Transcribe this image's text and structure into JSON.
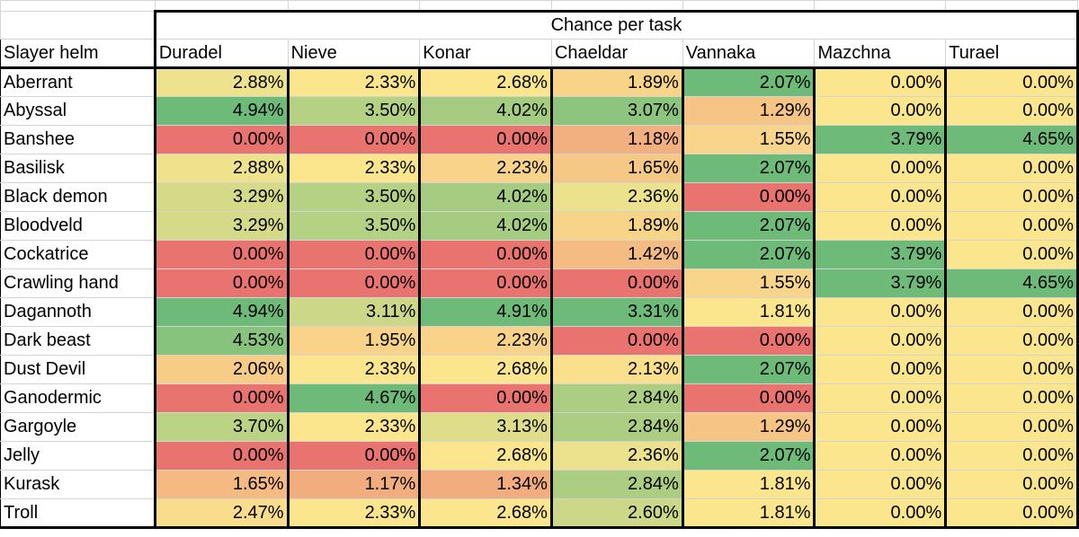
{
  "title": "Chance per task",
  "row_header": "Slayer helm",
  "chart_data": {
    "type": "table",
    "title": "Chance per task",
    "columns": [
      "Duradel",
      "Nieve",
      "Konar",
      "Chaeldar",
      "Vannaka",
      "Mazchna",
      "Turael"
    ],
    "rows": [
      {
        "name": "Aberrant",
        "values": [
          2.88,
          2.33,
          2.68,
          1.89,
          2.07,
          0.0,
          0.0
        ]
      },
      {
        "name": "Abyssal",
        "values": [
          4.94,
          3.5,
          4.02,
          3.07,
          1.29,
          0.0,
          0.0
        ]
      },
      {
        "name": "Banshee",
        "values": [
          0.0,
          0.0,
          0.0,
          1.18,
          1.55,
          3.79,
          4.65
        ]
      },
      {
        "name": "Basilisk",
        "values": [
          2.88,
          2.33,
          2.23,
          1.65,
          2.07,
          0.0,
          0.0
        ]
      },
      {
        "name": "Black demon",
        "values": [
          3.29,
          3.5,
          4.02,
          2.36,
          0.0,
          0.0,
          0.0
        ]
      },
      {
        "name": "Bloodveld",
        "values": [
          3.29,
          3.5,
          4.02,
          1.89,
          2.07,
          0.0,
          0.0
        ]
      },
      {
        "name": "Cockatrice",
        "values": [
          0.0,
          0.0,
          0.0,
          1.42,
          2.07,
          3.79,
          0.0
        ]
      },
      {
        "name": "Crawling hand",
        "values": [
          0.0,
          0.0,
          0.0,
          0.0,
          1.55,
          3.79,
          4.65
        ]
      },
      {
        "name": "Dagannoth",
        "values": [
          4.94,
          3.11,
          4.91,
          3.31,
          1.81,
          0.0,
          0.0
        ]
      },
      {
        "name": "Dark beast",
        "values": [
          4.53,
          1.95,
          2.23,
          0.0,
          0.0,
          0.0,
          0.0
        ]
      },
      {
        "name": "Dust Devil",
        "values": [
          2.06,
          2.33,
          2.68,
          2.13,
          2.07,
          0.0,
          0.0
        ]
      },
      {
        "name": "Ganodermic",
        "values": [
          0.0,
          4.67,
          0.0,
          2.84,
          0.0,
          0.0,
          0.0
        ]
      },
      {
        "name": "Gargoyle",
        "values": [
          3.7,
          2.33,
          3.13,
          2.84,
          1.29,
          0.0,
          0.0
        ]
      },
      {
        "name": "Jelly",
        "values": [
          0.0,
          0.0,
          2.68,
          2.36,
          2.07,
          0.0,
          0.0
        ]
      },
      {
        "name": "Kurask",
        "values": [
          1.65,
          1.17,
          1.34,
          2.84,
          1.81,
          0.0,
          0.0
        ]
      },
      {
        "name": "Troll",
        "values": [
          2.47,
          2.33,
          2.68,
          2.6,
          1.81,
          0.0,
          0.0
        ]
      }
    ],
    "value_suffix": "%",
    "color_scale": {
      "low": "#e8736f",
      "mid": "#fbe68e",
      "high": "#6ebb79"
    }
  }
}
